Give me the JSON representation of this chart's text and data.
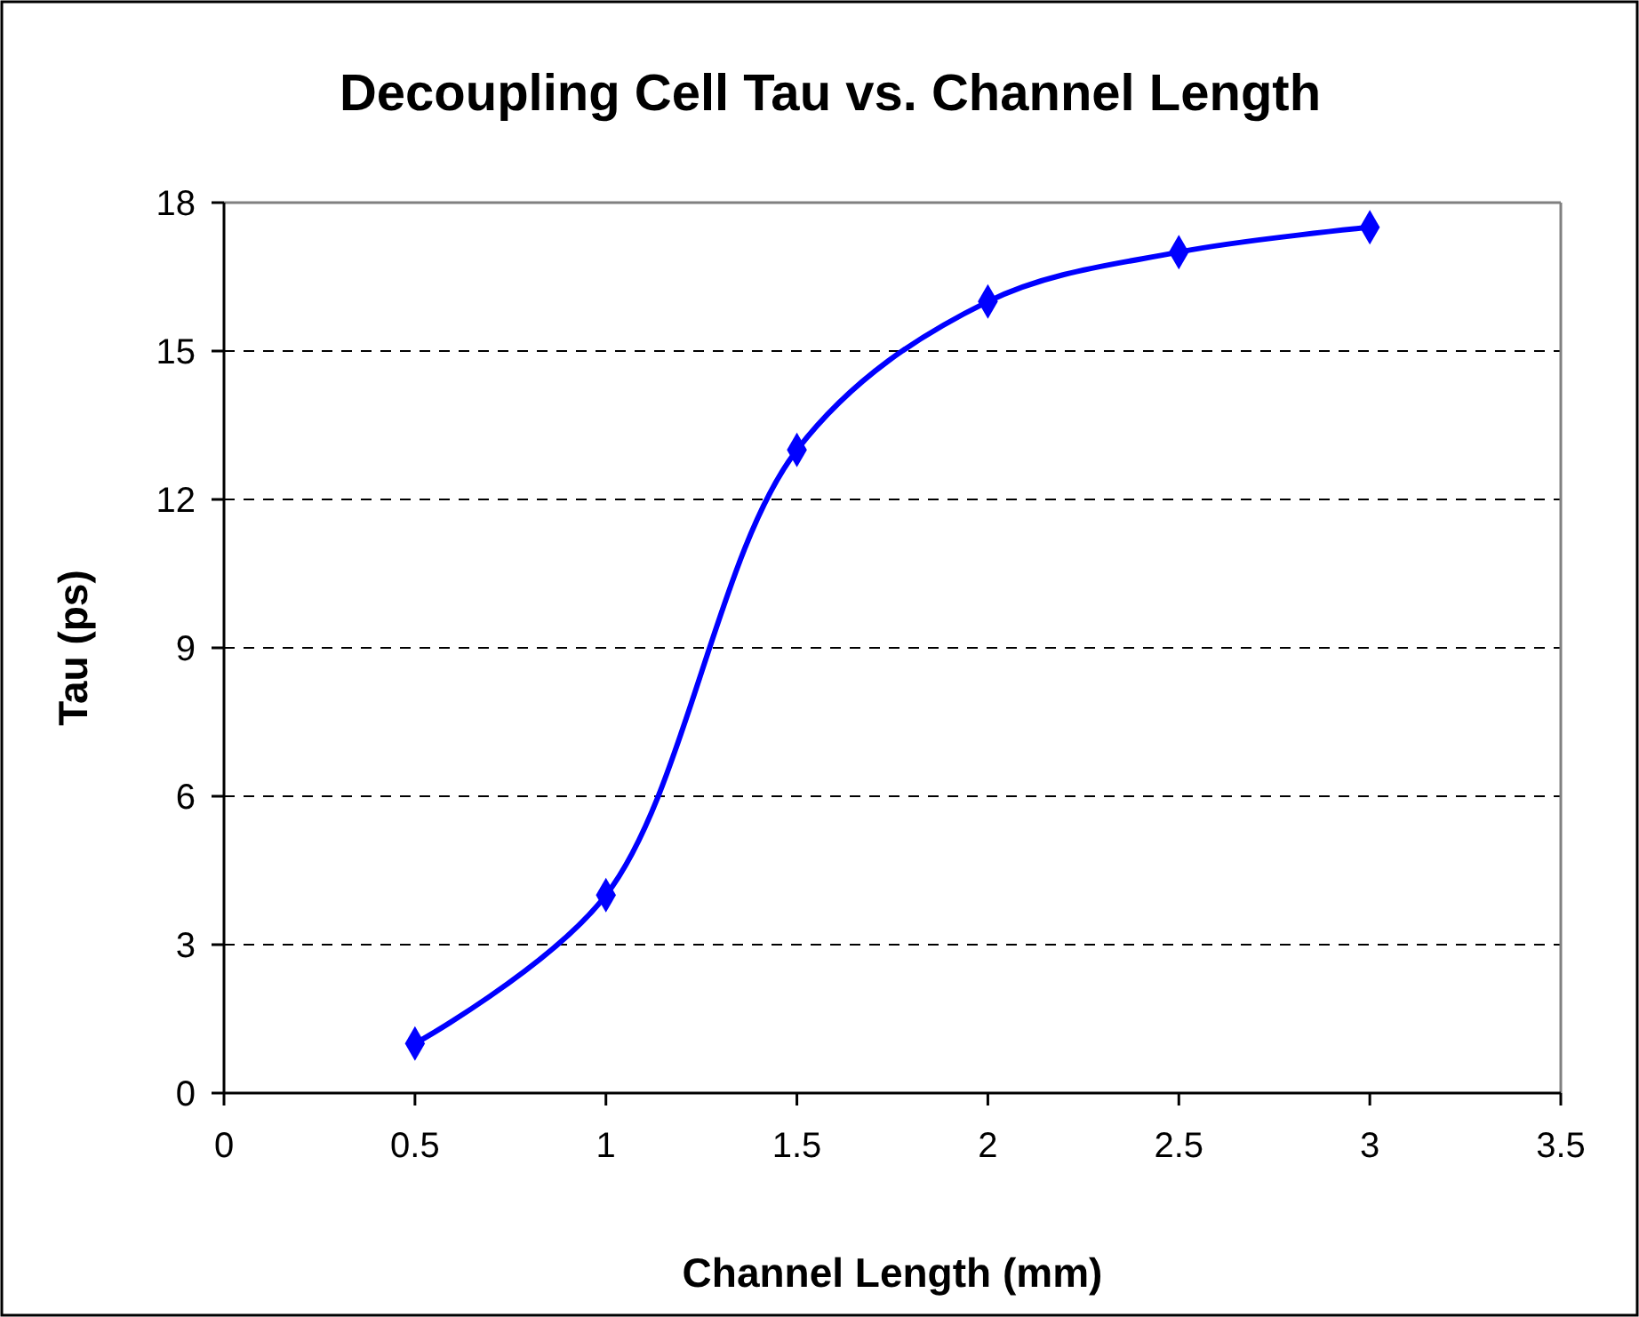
{
  "chart_data": {
    "type": "line",
    "title": "Decoupling Cell Tau vs. Channel Length",
    "xlabel": "Channel Length (mm)",
    "ylabel": "Tau (ps)",
    "x": [
      0.5,
      1,
      1.5,
      2,
      2.5,
      3
    ],
    "series": [
      {
        "color": "#0000ff",
        "values": [
          1,
          4,
          13,
          16,
          17,
          17.5
        ]
      }
    ],
    "xlim": [
      0,
      3.5
    ],
    "xticks": [
      0,
      0.5,
      1,
      1.5,
      2,
      2.5,
      3,
      3.5
    ],
    "ylim": [
      0,
      18
    ],
    "yticks": [
      0,
      3,
      6,
      9,
      12,
      15,
      18
    ],
    "grid": "y",
    "marker": "diamond",
    "line_style": "solid"
  }
}
